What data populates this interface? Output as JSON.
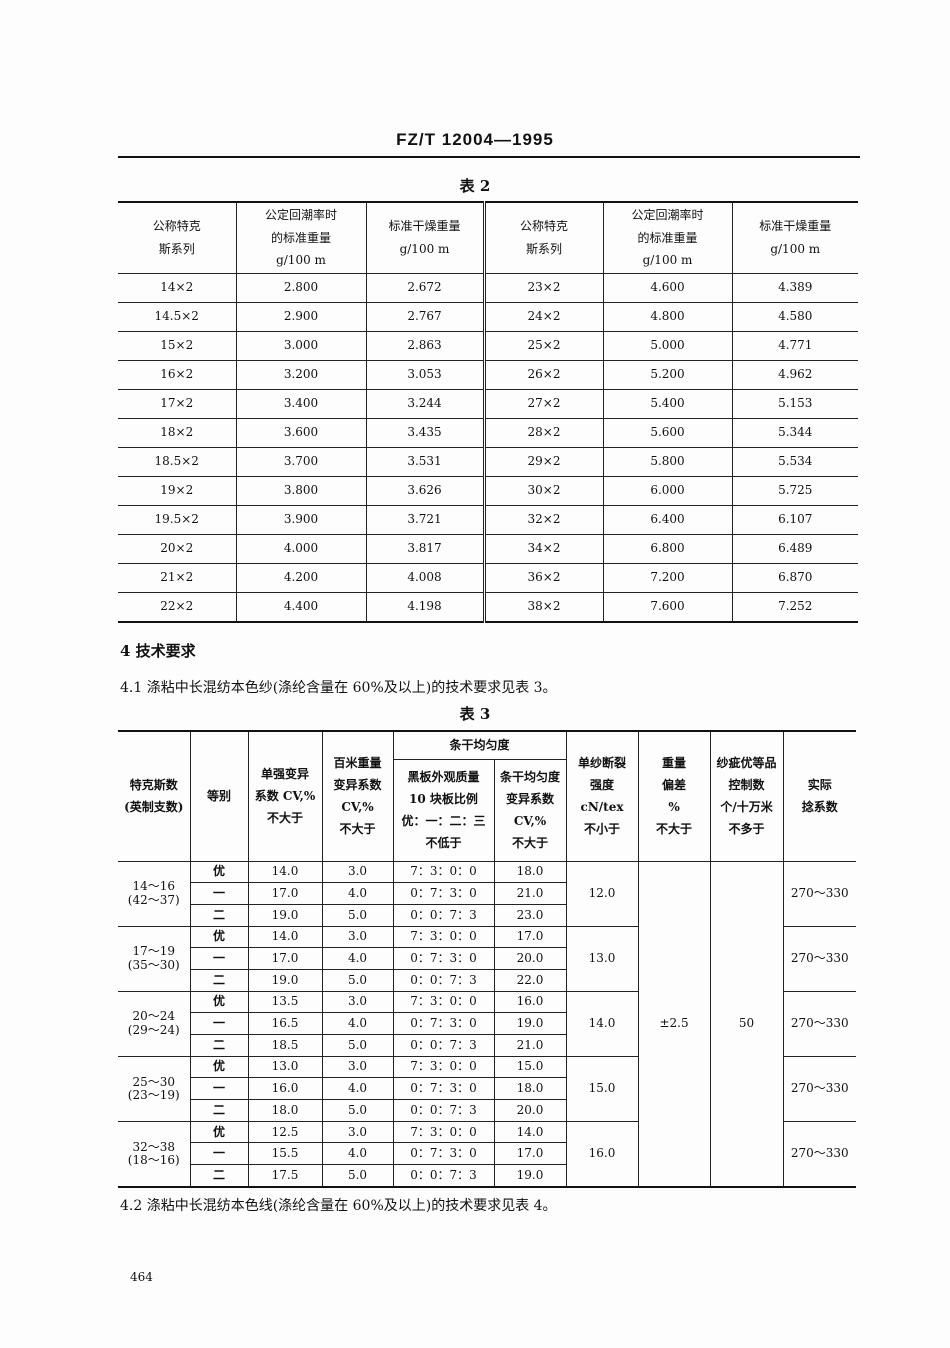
{
  "standard_no": "FZ/T 12004—1995",
  "table2": {
    "caption": "表 2",
    "headers": [
      "公称特克\n斯系列",
      "公定回潮率时\n的标准重量\ng/100 m",
      "标准干燥重量\ng/100 m",
      "公称特克\n斯系列",
      "公定回潮率时\n的标准重量\ng/100 m",
      "标准干燥重量\ng/100 m"
    ],
    "rows": [
      [
        "14×2",
        "2.800",
        "2.672",
        "23×2",
        "4.600",
        "4.389"
      ],
      [
        "14.5×2",
        "2.900",
        "2.767",
        "24×2",
        "4.800",
        "4.580"
      ],
      [
        "15×2",
        "3.000",
        "2.863",
        "25×2",
        "5.000",
        "4.771"
      ],
      [
        "16×2",
        "3.200",
        "3.053",
        "26×2",
        "5.200",
        "4.962"
      ],
      [
        "17×2",
        "3.400",
        "3.244",
        "27×2",
        "5.400",
        "5.153"
      ],
      [
        "18×2",
        "3.600",
        "3.435",
        "28×2",
        "5.600",
        "5.344"
      ],
      [
        "18.5×2",
        "3.700",
        "3.531",
        "29×2",
        "5.800",
        "5.534"
      ],
      [
        "19×2",
        "3.800",
        "3.626",
        "30×2",
        "6.000",
        "5.725"
      ],
      [
        "19.5×2",
        "3.900",
        "3.721",
        "32×2",
        "6.400",
        "6.107"
      ],
      [
        "20×2",
        "4.000",
        "3.817",
        "34×2",
        "6.800",
        "6.489"
      ],
      [
        "21×2",
        "4.200",
        "4.008",
        "36×2",
        "7.200",
        "6.870"
      ],
      [
        "22×2",
        "4.400",
        "4.198",
        "38×2",
        "7.600",
        "7.252"
      ]
    ]
  },
  "section4": {
    "title": "4  技术要求",
    "p41": "4.1  涤粘中长混纺本色纱(涤纶含量在 60%及以上)的技术要求见表 3。",
    "p42": "4.2  涤粘中长混纺本色线(涤纶含量在 60%及以上)的技术要求见表 4。"
  },
  "table3": {
    "caption": "表 3",
    "headers": {
      "tex": "特克斯数\n(英制支数)",
      "grade": "等别",
      "strength_cv": "单强变异\n系数 CV,%\n不大于",
      "weight_cv": "百米重量\n变异系数\nCV,%\n不大于",
      "evenness": "条干均匀度",
      "board": "黑板外观质量\n10 块板比例\n优：一：二：三\n不低于",
      "evenness_cv": "条干均匀度\n变异系数\nCV,%\n不大于",
      "tenacity": "单纱断裂\n强度\ncN/tex\n不小于",
      "weight_dev": "重量\n偏差\n%\n不大于",
      "neps": "纱疵优等品\n控制数\n个/十万米\n不多于",
      "twist": "实际\n捻系数"
    },
    "weight_dev": "±2.5",
    "neps": "50",
    "groups": [
      {
        "tex": "14～16\n(42～37)",
        "tenacity": "12.0",
        "twist": "270～330",
        "rows": [
          [
            "优",
            "14.0",
            "3.0",
            "7：3：0：0",
            "18.0"
          ],
          [
            "一",
            "17.0",
            "4.0",
            "0：7：3：0",
            "21.0"
          ],
          [
            "二",
            "19.0",
            "5.0",
            "0：0：7：3",
            "23.0"
          ]
        ]
      },
      {
        "tex": "17～19\n(35～30)",
        "tenacity": "13.0",
        "twist": "270～330",
        "rows": [
          [
            "优",
            "14.0",
            "3.0",
            "7：3：0：0",
            "17.0"
          ],
          [
            "一",
            "17.0",
            "4.0",
            "0：7：3：0",
            "20.0"
          ],
          [
            "二",
            "19.0",
            "5.0",
            "0：0：7：3",
            "22.0"
          ]
        ]
      },
      {
        "tex": "20～24\n(29～24)",
        "tenacity": "14.0",
        "twist": "270～330",
        "rows": [
          [
            "优",
            "13.5",
            "3.0",
            "7：3：0：0",
            "16.0"
          ],
          [
            "一",
            "16.5",
            "4.0",
            "0：7：3：0",
            "19.0"
          ],
          [
            "二",
            "18.5",
            "5.0",
            "0：0：7：3",
            "21.0"
          ]
        ]
      },
      {
        "tex": "25～30\n(23～19)",
        "tenacity": "15.0",
        "twist": "270～330",
        "rows": [
          [
            "优",
            "13.0",
            "3.0",
            "7：3：0：0",
            "15.0"
          ],
          [
            "一",
            "16.0",
            "4.0",
            "0：7：3：0",
            "18.0"
          ],
          [
            "二",
            "18.0",
            "5.0",
            "0：0：7：3",
            "20.0"
          ]
        ]
      },
      {
        "tex": "32～38\n(18～16)",
        "tenacity": "16.0",
        "twist": "270～330",
        "rows": [
          [
            "优",
            "12.5",
            "3.0",
            "7：3：0：0",
            "14.0"
          ],
          [
            "一",
            "15.5",
            "4.0",
            "0：7：3：0",
            "17.0"
          ],
          [
            "二",
            "17.5",
            "5.0",
            "0：0：7：3",
            "19.0"
          ]
        ]
      }
    ]
  },
  "page_number": "464"
}
